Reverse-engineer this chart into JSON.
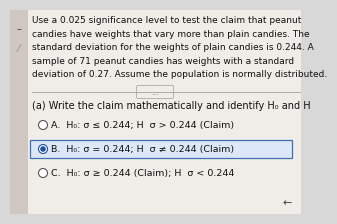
{
  "bg_color": "#d8d8d8",
  "content_bg": "#f0ede8",
  "title_text_lines": [
    "Use a 0.025 significance level to test the claim that peanut",
    "candies have weights that vary more than plain candies. The",
    "standard deviation for the weights of plain candies is 0.244. A",
    "sample of 71 peanut candies has weights with a standard",
    "deviation of 0.27. Assume the population is normally distributed."
  ],
  "subtitle": "(a) Write the claim mathematically and identify H₀ and H⁡",
  "option_a_parts": [
    "A.  H₀: σ ≤ 0.244; H⁡  σ > 0.244 (Claim)"
  ],
  "option_b_parts": [
    "B.  H₀: σ = 0.244; H⁡  σ ≠ 0.244 (Claim)"
  ],
  "option_c_parts": [
    "C.  H₀: σ ≥ 0.244 (Claim); H⁡  σ < 0.244"
  ],
  "divider_text": "...",
  "left_accent_color": "#c8b8a8",
  "selected_box_fill": "#dce8f8",
  "selected_box_edge": "#4070b0",
  "radio_filled_color": "#2050a0",
  "radio_border_color": "#555555",
  "text_color": "#111111",
  "font_size_body": 6.5,
  "font_size_options": 6.8,
  "font_size_subtitle": 7.0,
  "arrow_color": "#444444"
}
